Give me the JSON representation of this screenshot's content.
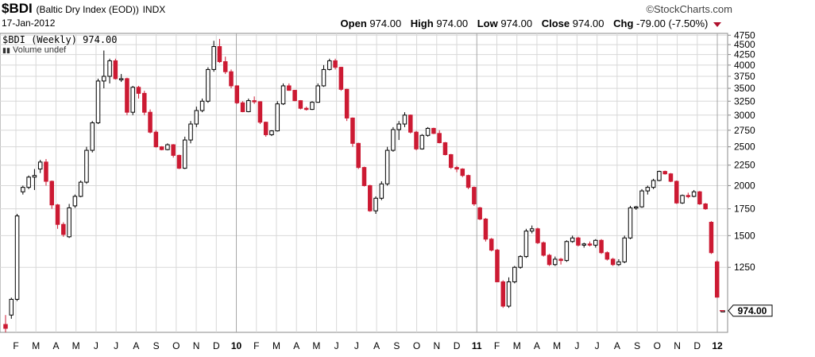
{
  "header": {
    "symbol": "$BDI",
    "description": "(Baltic Dry Index (EOD))",
    "exchange": "INDX",
    "date": "17-Jan-2012",
    "brand": "©StockCharts.com",
    "open_label": "Open",
    "open_value": "974.00",
    "high_label": "High",
    "high_value": "974.00",
    "low_label": "Low",
    "low_value": "974.00",
    "close_label": "Close",
    "close_value": "974.00",
    "chg_label": "Chg",
    "chg_value": "-79.00 (-7.50%)"
  },
  "legend": {
    "series": "$BDI (Weekly) 974.00",
    "volume": "Volume undef"
  },
  "colors": {
    "up": "#000000",
    "down": "#cc1a33",
    "grid": "#d8d8d8"
  },
  "chart_data": {
    "type": "candlestick",
    "title": "$BDI (Baltic Dry Index (EOD)) INDX",
    "scale": "log",
    "ylim": [
      860,
      4800
    ],
    "yticks": [
      1250,
      1500,
      1750,
      2000,
      2250,
      2500,
      2750,
      3000,
      3250,
      3500,
      3750,
      4000,
      4250,
      4500,
      4750
    ],
    "last_price_label": "974.00",
    "x_month_labels": [
      "F",
      "M",
      "A",
      "M",
      "J",
      "J",
      "A",
      "S",
      "O",
      "N",
      "D",
      "10",
      "F",
      "M",
      "A",
      "M",
      "J",
      "J",
      "A",
      "S",
      "O",
      "N",
      "D",
      "11",
      "F",
      "M",
      "A",
      "M",
      "J",
      "J",
      "A",
      "S",
      "O",
      "N",
      "D",
      "12"
    ],
    "candles": [
      [
        900,
        950,
        860,
        880
      ],
      [
        950,
        1050,
        930,
        1040
      ],
      [
        1040,
        1700,
        1030,
        1680
      ],
      [
        1930,
        2000,
        1900,
        1980
      ],
      [
        1980,
        2120,
        1960,
        2100
      ],
      [
        2100,
        2200,
        1950,
        2120
      ],
      [
        2200,
        2320,
        2150,
        2290
      ],
      [
        2290,
        2330,
        2000,
        2050
      ],
      [
        2050,
        2060,
        1750,
        1790
      ],
      [
        1790,
        1800,
        1560,
        1600
      ],
      [
        1600,
        1620,
        1490,
        1510
      ],
      [
        1490,
        1800,
        1480,
        1760
      ],
      [
        1780,
        1900,
        1760,
        1880
      ],
      [
        1880,
        2060,
        1870,
        2040
      ],
      [
        2040,
        2500,
        2020,
        2450
      ],
      [
        2450,
        2900,
        2420,
        2870
      ],
      [
        2870,
        3700,
        2850,
        3650
      ],
      [
        3650,
        4350,
        3500,
        3750
      ],
      [
        3750,
        4150,
        3600,
        4100
      ],
      [
        4100,
        4150,
        3680,
        3700
      ],
      [
        3690,
        3800,
        3630,
        3700
      ],
      [
        3700,
        3720,
        3000,
        3050
      ],
      [
        3050,
        3550,
        3000,
        3520
      ],
      [
        3520,
        3550,
        3300,
        3400
      ],
      [
        3400,
        3450,
        3000,
        3050
      ],
      [
        3050,
        3100,
        2700,
        2720
      ],
      [
        2720,
        2750,
        2490,
        2500
      ],
      [
        2500,
        2510,
        2450,
        2460
      ],
      [
        2460,
        2550,
        2450,
        2530
      ],
      [
        2530,
        2540,
        2350,
        2380
      ],
      [
        2380,
        2390,
        2200,
        2210
      ],
      [
        2210,
        2650,
        2200,
        2600
      ],
      [
        2600,
        2900,
        2550,
        2850
      ],
      [
        2850,
        3150,
        2800,
        3080
      ],
      [
        3080,
        3300,
        3050,
        3250
      ],
      [
        3250,
        3950,
        3220,
        3900
      ],
      [
        3900,
        4600,
        3850,
        4450
      ],
      [
        4450,
        4650,
        4050,
        4080
      ],
      [
        4080,
        4200,
        3800,
        3850
      ],
      [
        3850,
        3900,
        3500,
        3550
      ],
      [
        3550,
        3560,
        3200,
        3220
      ],
      [
        3220,
        3250,
        3050,
        3060
      ],
      [
        3060,
        3300,
        3050,
        3260
      ],
      [
        3260,
        3340,
        3200,
        3240
      ],
      [
        3240,
        3250,
        2850,
        2880
      ],
      [
        2880,
        2890,
        2650,
        2680
      ],
      [
        2680,
        2750,
        2660,
        2740
      ],
      [
        2740,
        3250,
        2730,
        3200
      ],
      [
        3200,
        3600,
        3180,
        3550
      ],
      [
        3550,
        3600,
        3450,
        3460
      ],
      [
        3460,
        3470,
        3250,
        3260
      ],
      [
        3260,
        3270,
        3100,
        3120
      ],
      [
        3120,
        3150,
        3080,
        3100
      ],
      [
        3100,
        3250,
        3090,
        3230
      ],
      [
        3230,
        3600,
        3220,
        3550
      ],
      [
        3550,
        4000,
        3530,
        3900
      ],
      [
        3900,
        4150,
        3880,
        4100
      ],
      [
        4100,
        4150,
        3900,
        3950
      ],
      [
        3950,
        3960,
        3450,
        3480
      ],
      [
        3480,
        3490,
        2900,
        2950
      ],
      [
        2950,
        2960,
        2500,
        2550
      ],
      [
        2550,
        2560,
        2200,
        2220
      ],
      [
        2220,
        2230,
        1990,
        2000
      ],
      [
        2000,
        2010,
        1720,
        1730
      ],
      [
        1730,
        1880,
        1700,
        1860
      ],
      [
        1860,
        2050,
        1840,
        2020
      ],
      [
        2020,
        2500,
        2000,
        2450
      ],
      [
        2450,
        2800,
        2430,
        2760
      ],
      [
        2760,
        2900,
        2600,
        2850
      ],
      [
        2850,
        3050,
        2800,
        3000
      ],
      [
        3000,
        3010,
        2700,
        2720
      ],
      [
        2720,
        2740,
        2450,
        2470
      ],
      [
        2470,
        2690,
        2460,
        2670
      ],
      [
        2670,
        2800,
        2650,
        2780
      ],
      [
        2780,
        2790,
        2690,
        2700
      ],
      [
        2700,
        2750,
        2550,
        2560
      ],
      [
        2560,
        2570,
        2380,
        2390
      ],
      [
        2390,
        2400,
        2200,
        2220
      ],
      [
        2220,
        2240,
        2160,
        2200
      ],
      [
        2200,
        2210,
        2100,
        2120
      ],
      [
        2120,
        2130,
        1960,
        1980
      ],
      [
        1980,
        1990,
        1780,
        1800
      ],
      [
        1760,
        1770,
        1640,
        1650
      ],
      [
        1650,
        1660,
        1450,
        1470
      ],
      [
        1470,
        1480,
        1370,
        1380
      ],
      [
        1380,
        1390,
        1150,
        1150
      ],
      [
        1150,
        1160,
        990,
        1000
      ],
      [
        1000,
        1180,
        990,
        1150
      ],
      [
        1150,
        1260,
        1140,
        1250
      ],
      [
        1250,
        1340,
        1240,
        1330
      ],
      [
        1330,
        1560,
        1320,
        1540
      ],
      [
        1540,
        1590,
        1520,
        1560
      ],
      [
        1560,
        1570,
        1430,
        1440
      ],
      [
        1440,
        1450,
        1330,
        1340
      ],
      [
        1340,
        1350,
        1260,
        1270
      ],
      [
        1270,
        1330,
        1260,
        1310
      ],
      [
        1310,
        1320,
        1270,
        1300
      ],
      [
        1300,
        1460,
        1290,
        1450
      ],
      [
        1450,
        1500,
        1440,
        1480
      ],
      [
        1480,
        1490,
        1410,
        1420
      ],
      [
        1420,
        1440,
        1400,
        1430
      ],
      [
        1430,
        1450,
        1410,
        1420
      ],
      [
        1420,
        1470,
        1400,
        1460
      ],
      [
        1460,
        1470,
        1350,
        1360
      ],
      [
        1360,
        1370,
        1300,
        1310
      ],
      [
        1310,
        1320,
        1260,
        1270
      ],
      [
        1270,
        1310,
        1260,
        1290
      ],
      [
        1290,
        1500,
        1280,
        1480
      ],
      [
        1480,
        1780,
        1470,
        1760
      ],
      [
        1760,
        1780,
        1740,
        1770
      ],
      [
        1770,
        1960,
        1760,
        1940
      ],
      [
        1940,
        2000,
        1900,
        1980
      ],
      [
        1980,
        2080,
        1960,
        2060
      ],
      [
        2060,
        2180,
        2050,
        2170
      ],
      [
        2170,
        2180,
        2130,
        2140
      ],
      [
        2140,
        2150,
        2040,
        2050
      ],
      [
        2050,
        2060,
        1800,
        1810
      ],
      [
        1810,
        1900,
        1800,
        1890
      ],
      [
        1890,
        1920,
        1860,
        1880
      ],
      [
        1880,
        1950,
        1870,
        1930
      ],
      [
        1930,
        1940,
        1790,
        1800
      ],
      [
        1800,
        1810,
        1740,
        1750
      ],
      [
        1620,
        1630,
        1350,
        1360
      ],
      [
        1290,
        1300,
        1050,
        1053
      ],
      [
        974,
        974,
        974,
        974
      ]
    ]
  }
}
